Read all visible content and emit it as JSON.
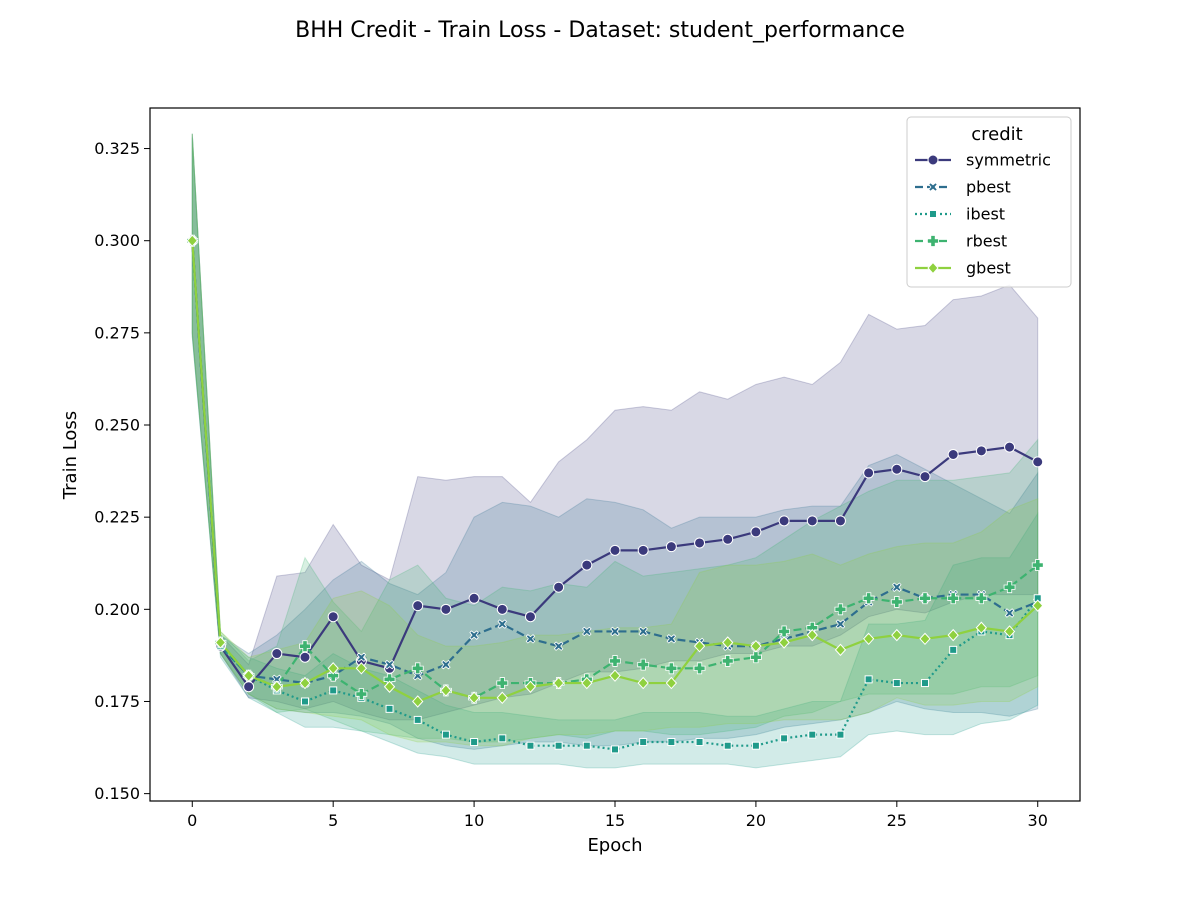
{
  "chart_data": {
    "type": "line",
    "title": "BHH Credit - Train Loss - Dataset: student_performance",
    "xlabel": "Epoch",
    "ylabel": "Train Loss",
    "xlim": [
      -1.5,
      31.5
    ],
    "ylim": [
      0.148,
      0.336
    ],
    "xticks": [
      0,
      5,
      10,
      15,
      20,
      25,
      30
    ],
    "yticks": [
      0.15,
      0.175,
      0.2,
      0.225,
      0.25,
      0.275,
      0.3,
      0.325
    ],
    "ytick_labels": [
      "0.150",
      "0.175",
      "0.200",
      "0.225",
      "0.250",
      "0.275",
      "0.300",
      "0.325"
    ],
    "grid": false,
    "legend": {
      "title": "credit",
      "placement": "top-right"
    },
    "x": [
      0,
      1,
      2,
      3,
      4,
      5,
      6,
      7,
      8,
      9,
      10,
      11,
      12,
      13,
      14,
      15,
      16,
      17,
      18,
      19,
      20,
      21,
      22,
      23,
      24,
      25,
      26,
      27,
      28,
      29,
      30
    ],
    "series": [
      {
        "name": "symmetric",
        "color": "#3b3a7c",
        "marker": "circle",
        "dash": "solid",
        "values": [
          0.3,
          0.19,
          0.179,
          0.188,
          0.187,
          0.198,
          0.186,
          0.184,
          0.201,
          0.2,
          0.203,
          0.2,
          0.198,
          0.206,
          0.212,
          0.216,
          0.216,
          0.217,
          0.218,
          0.219,
          0.221,
          0.224,
          0.224,
          0.224,
          0.237,
          0.238,
          0.236,
          0.242,
          0.243,
          0.244,
          0.24
        ],
        "upper": [
          0.329,
          0.193,
          0.185,
          0.209,
          0.21,
          0.223,
          0.212,
          0.208,
          0.236,
          0.235,
          0.236,
          0.236,
          0.229,
          0.24,
          0.246,
          0.254,
          0.255,
          0.254,
          0.259,
          0.257,
          0.261,
          0.263,
          0.261,
          0.267,
          0.28,
          0.276,
          0.277,
          0.284,
          0.285,
          0.288,
          0.279
        ],
        "lower": [
          0.275,
          0.188,
          0.176,
          0.175,
          0.173,
          0.175,
          0.172,
          0.17,
          0.17,
          0.172,
          0.174,
          0.176,
          0.177,
          0.18,
          0.183,
          0.183,
          0.184,
          0.186,
          0.186,
          0.188,
          0.188,
          0.19,
          0.19,
          0.193,
          0.198,
          0.2,
          0.199,
          0.202,
          0.204,
          0.204,
          0.204
        ]
      },
      {
        "name": "pbest",
        "color": "#2e6e8e",
        "marker": "x",
        "dash": "8,4",
        "values": [
          0.3,
          0.19,
          0.182,
          0.181,
          0.18,
          0.182,
          0.187,
          0.185,
          0.182,
          0.185,
          0.193,
          0.196,
          0.192,
          0.19,
          0.194,
          0.194,
          0.194,
          0.192,
          0.191,
          0.19,
          0.19,
          0.192,
          0.194,
          0.196,
          0.202,
          0.206,
          0.203,
          0.204,
          0.204,
          0.199,
          0.202
        ],
        "upper": [
          0.328,
          0.193,
          0.188,
          0.193,
          0.2,
          0.208,
          0.213,
          0.207,
          0.204,
          0.21,
          0.225,
          0.229,
          0.228,
          0.225,
          0.23,
          0.229,
          0.227,
          0.222,
          0.225,
          0.225,
          0.225,
          0.227,
          0.228,
          0.228,
          0.239,
          0.242,
          0.238,
          0.234,
          0.23,
          0.226,
          0.237
        ],
        "lower": [
          0.274,
          0.188,
          0.177,
          0.173,
          0.172,
          0.172,
          0.171,
          0.169,
          0.165,
          0.163,
          0.162,
          0.163,
          0.164,
          0.164,
          0.163,
          0.163,
          0.164,
          0.164,
          0.165,
          0.165,
          0.166,
          0.168,
          0.169,
          0.17,
          0.172,
          0.175,
          0.173,
          0.172,
          0.172,
          0.171,
          0.173
        ]
      },
      {
        "name": "ibest",
        "color": "#1f9a8a",
        "marker": "square",
        "dash": "2,3",
        "values": [
          0.3,
          0.19,
          0.182,
          0.178,
          0.175,
          0.178,
          0.176,
          0.173,
          0.17,
          0.166,
          0.164,
          0.165,
          0.163,
          0.163,
          0.163,
          0.162,
          0.164,
          0.164,
          0.164,
          0.163,
          0.163,
          0.165,
          0.166,
          0.166,
          0.181,
          0.18,
          0.18,
          0.189,
          0.194,
          0.193,
          0.203
        ],
        "upper": [
          0.329,
          0.193,
          0.187,
          0.184,
          0.182,
          0.188,
          0.184,
          0.182,
          0.178,
          0.174,
          0.172,
          0.172,
          0.171,
          0.17,
          0.17,
          0.17,
          0.172,
          0.172,
          0.172,
          0.171,
          0.171,
          0.173,
          0.175,
          0.175,
          0.196,
          0.196,
          0.197,
          0.212,
          0.214,
          0.214,
          0.226
        ],
        "lower": [
          0.274,
          0.187,
          0.176,
          0.172,
          0.168,
          0.168,
          0.167,
          0.164,
          0.161,
          0.16,
          0.158,
          0.158,
          0.158,
          0.158,
          0.157,
          0.157,
          0.158,
          0.158,
          0.158,
          0.158,
          0.157,
          0.158,
          0.159,
          0.16,
          0.166,
          0.167,
          0.166,
          0.166,
          0.169,
          0.17,
          0.174
        ]
      },
      {
        "name": "rbest",
        "color": "#3db370",
        "marker": "plus",
        "dash": "8,4",
        "values": [
          0.3,
          0.191,
          0.182,
          0.179,
          0.19,
          0.182,
          0.177,
          0.181,
          0.184,
          0.178,
          0.176,
          0.18,
          0.18,
          0.18,
          0.181,
          0.186,
          0.185,
          0.184,
          0.184,
          0.186,
          0.187,
          0.194,
          0.195,
          0.2,
          0.203,
          0.202,
          0.203,
          0.203,
          0.203,
          0.206,
          0.212
        ],
        "upper": [
          0.329,
          0.194,
          0.186,
          0.19,
          0.214,
          0.202,
          0.194,
          0.208,
          0.212,
          0.203,
          0.201,
          0.206,
          0.205,
          0.207,
          0.206,
          0.213,
          0.209,
          0.21,
          0.211,
          0.212,
          0.214,
          0.219,
          0.224,
          0.228,
          0.232,
          0.235,
          0.235,
          0.235,
          0.236,
          0.237,
          0.246
        ],
        "lower": [
          0.275,
          0.188,
          0.177,
          0.172,
          0.173,
          0.17,
          0.167,
          0.166,
          0.165,
          0.165,
          0.164,
          0.164,
          0.165,
          0.166,
          0.165,
          0.167,
          0.167,
          0.166,
          0.166,
          0.167,
          0.168,
          0.171,
          0.172,
          0.175,
          0.177,
          0.177,
          0.177,
          0.177,
          0.179,
          0.179,
          0.182
        ]
      },
      {
        "name": "gbest",
        "color": "#8fd13f",
        "marker": "diamond",
        "dash": "solid",
        "values": [
          0.3,
          0.191,
          0.182,
          0.179,
          0.18,
          0.184,
          0.184,
          0.179,
          0.175,
          0.178,
          0.176,
          0.176,
          0.179,
          0.18,
          0.18,
          0.182,
          0.18,
          0.18,
          0.19,
          0.191,
          0.19,
          0.191,
          0.193,
          0.189,
          0.192,
          0.193,
          0.192,
          0.193,
          0.195,
          0.194,
          0.201
        ],
        "upper": [
          0.329,
          0.194,
          0.187,
          0.189,
          0.191,
          0.203,
          0.205,
          0.201,
          0.193,
          0.19,
          0.19,
          0.191,
          0.193,
          0.193,
          0.194,
          0.195,
          0.195,
          0.196,
          0.21,
          0.212,
          0.212,
          0.213,
          0.215,
          0.212,
          0.215,
          0.217,
          0.218,
          0.218,
          0.221,
          0.227,
          0.23
        ],
        "lower": [
          0.275,
          0.188,
          0.177,
          0.173,
          0.172,
          0.171,
          0.17,
          0.166,
          0.164,
          0.164,
          0.163,
          0.163,
          0.165,
          0.166,
          0.166,
          0.167,
          0.167,
          0.168,
          0.168,
          0.169,
          0.169,
          0.17,
          0.17,
          0.17,
          0.172,
          0.176,
          0.174,
          0.174,
          0.175,
          0.175,
          0.179
        ]
      }
    ]
  }
}
